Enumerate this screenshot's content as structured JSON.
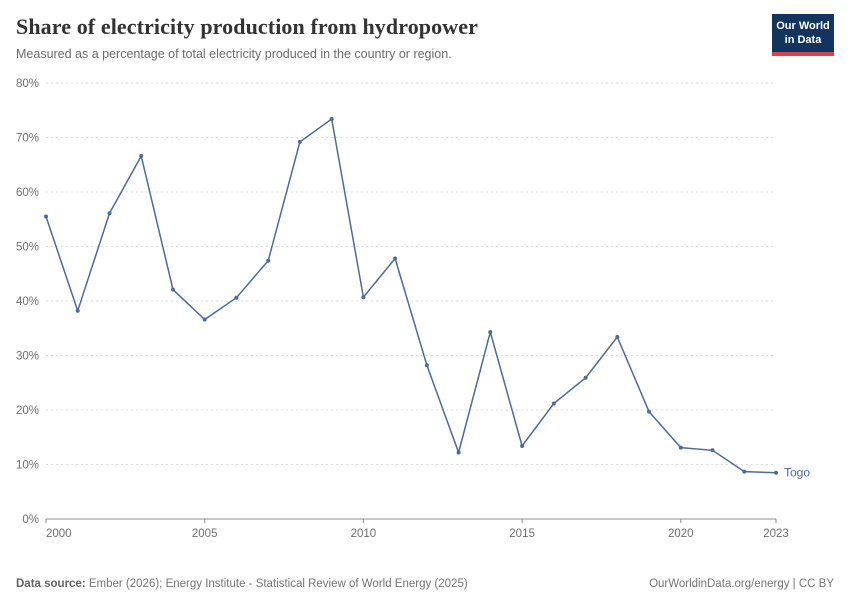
{
  "header": {
    "title": "Share of electricity production from hydropower",
    "subtitle": "Measured as a percentage of total electricity produced in the country or region.",
    "logo": {
      "line1": "Our World",
      "line2": "in Data"
    }
  },
  "chart_data": {
    "type": "line",
    "title": "Share of electricity production from hydropower",
    "xlabel": "",
    "ylabel": "",
    "xlim": [
      2000,
      2023
    ],
    "ylim": [
      0,
      80
    ],
    "grid": true,
    "xticks": [
      2000,
      2005,
      2010,
      2015,
      2020,
      2023
    ],
    "yticks": [
      0,
      10,
      20,
      30,
      40,
      50,
      60,
      70,
      80
    ],
    "ytick_suffix": "%",
    "series": [
      {
        "name": "Togo",
        "color": "#4C6A9C",
        "x": [
          2000,
          2001,
          2002,
          2003,
          2004,
          2005,
          2006,
          2007,
          2008,
          2009,
          2010,
          2011,
          2012,
          2013,
          2014,
          2015,
          2016,
          2017,
          2018,
          2019,
          2020,
          2021,
          2022,
          2023
        ],
        "values": [
          55.5,
          38.2,
          56.1,
          66.6,
          42.1,
          36.6,
          40.6,
          47.4,
          69.2,
          73.4,
          40.7,
          47.8,
          28.2,
          12.2,
          34.3,
          13.4,
          21.2,
          25.9,
          33.4,
          19.7,
          13.1,
          12.6,
          8.7,
          8.5
        ]
      }
    ]
  },
  "colors": {
    "line": "#4C6A9C",
    "grid": "#dcdcdc",
    "axis": "#8f8f8f",
    "logo_bg": "#12355f",
    "logo_accent": "#e63e3e"
  },
  "footer": {
    "source_label": "Data source:",
    "source_text": " Ember (2026); Energy Institute - Statistical Review of World Energy (2025)",
    "right_text": "OurWorldinData.org/energy | CC BY"
  }
}
